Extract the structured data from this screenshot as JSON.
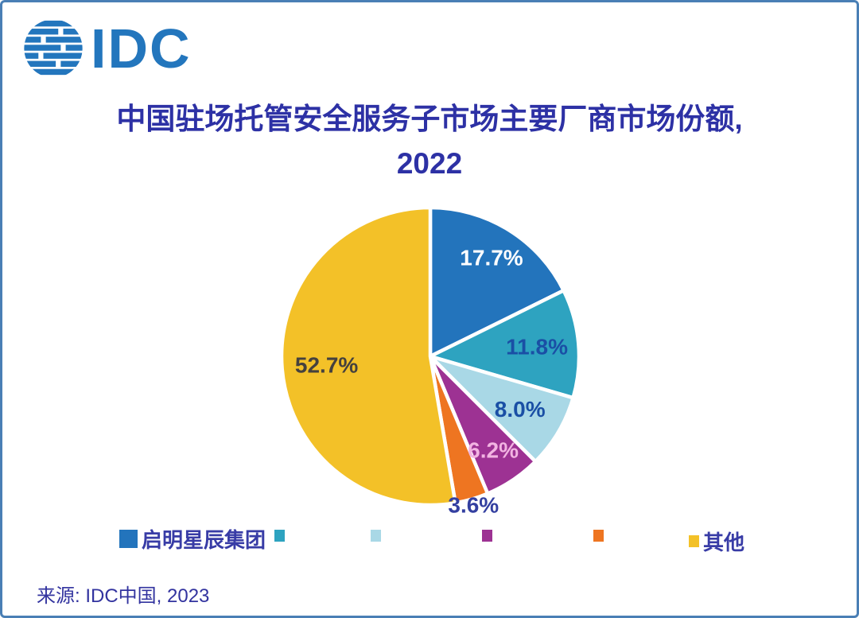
{
  "frame": {
    "border_color": "#4a7fb5",
    "background": "#ffffff"
  },
  "logo": {
    "text": "IDC",
    "color": "#2376bd",
    "icon": "striped-globe-icon"
  },
  "title": {
    "line1": "中国驻场托管安全服务子市场主要厂商市场份额,",
    "line2": "2022",
    "color": "#2d31a5"
  },
  "source": {
    "text": "来源: IDC中国, 2023",
    "color": "#32339f"
  },
  "chart_data": {
    "type": "pie",
    "title": "中国驻场托管安全服务子市场主要厂商市场份额, 2022",
    "start_angle_deg": 0,
    "direction": "clockwise",
    "slice_gap_color": "#ffffff",
    "legend_position": "bottom",
    "slices": [
      {
        "name": "启明星辰集团",
        "value": 17.7,
        "display": "17.7%",
        "color": "#2374bc",
        "label_color": "#ffffff",
        "label_radius": 0.78
      },
      {
        "name": "",
        "value": 11.8,
        "display": "11.8%",
        "color": "#2ea3c0",
        "label_color": "#1a4fa5",
        "label_radius": 0.72
      },
      {
        "name": "",
        "value": 8.0,
        "display": "8.0%",
        "color": "#a9d8e6",
        "label_color": "#1a4fa5",
        "label_radius": 0.7
      },
      {
        "name": "",
        "value": 6.2,
        "display": "6.2%",
        "color": "#9d3293",
        "label_color": "#f2b4e2",
        "label_radius": 0.76
      },
      {
        "name": "",
        "value": 3.6,
        "display": "3.6%",
        "color": "#ee7521",
        "label_color": "#333fa0",
        "label_radius": 1.04
      },
      {
        "name": "其他",
        "value": 52.7,
        "display": "52.7%",
        "color": "#f3c128",
        "label_color": "#45413e",
        "label_radius": 0.7
      }
    ]
  },
  "legend": {
    "label_color": "#383ca6",
    "items": [
      {
        "label": "启明星辰集团",
        "color": "#2374bc"
      },
      {
        "label": "",
        "color": "#2ea3c0"
      },
      {
        "label": "",
        "color": "#a9d8e6"
      },
      {
        "label": "",
        "color": "#9d3293"
      },
      {
        "label": "",
        "color": "#ee7521"
      },
      {
        "label": "其他",
        "color": "#f3c128"
      }
    ]
  }
}
